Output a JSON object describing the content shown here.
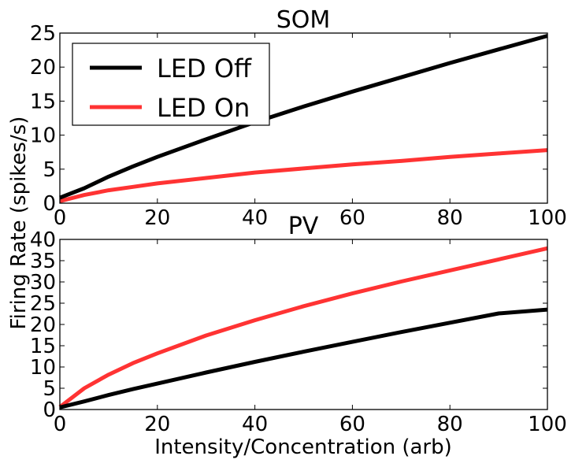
{
  "figure": {
    "shared_ylabel": "Firing Rate (spikes/s)",
    "shared_xlabel": "Intensity/Concentration (arb)"
  },
  "colors": {
    "led_off": "#000000",
    "led_on": "#ff3333",
    "background": "#ffffff"
  },
  "chart_data": [
    {
      "type": "line",
      "title": "SOM",
      "xlabel": "",
      "ylabel": "",
      "xlim": [
        0,
        100
      ],
      "ylim": [
        0,
        25
      ],
      "xticks": [
        "0",
        "20",
        "40",
        "60",
        "80",
        "100"
      ],
      "yticks": [
        "0",
        "5",
        "10",
        "15",
        "20",
        "25"
      ],
      "grid": false,
      "legend_position": "top-left",
      "x": [
        0,
        5,
        10,
        15,
        20,
        30,
        40,
        50,
        60,
        70,
        80,
        90,
        100
      ],
      "series": [
        {
          "name": "LED Off",
          "color": "#000000",
          "values": [
            0.8,
            2.2,
            3.9,
            5.4,
            6.8,
            9.4,
            11.9,
            14.2,
            16.4,
            18.5,
            20.6,
            22.6,
            24.6
          ]
        },
        {
          "name": "LED On",
          "color": "#ff3333",
          "values": [
            0.3,
            1.2,
            1.9,
            2.4,
            2.9,
            3.7,
            4.5,
            5.1,
            5.7,
            6.2,
            6.8,
            7.3,
            7.8
          ]
        }
      ]
    },
    {
      "type": "line",
      "title": "PV",
      "xlabel": "",
      "ylabel": "",
      "xlim": [
        0,
        100
      ],
      "ylim": [
        0,
        40
      ],
      "xticks": [
        "0",
        "20",
        "40",
        "60",
        "80",
        "100"
      ],
      "yticks": [
        "0",
        "5",
        "10",
        "15",
        "20",
        "25",
        "30",
        "35",
        "40"
      ],
      "grid": false,
      "x": [
        0,
        5,
        10,
        15,
        20,
        30,
        40,
        50,
        60,
        70,
        80,
        90,
        100
      ],
      "series": [
        {
          "name": "LED Off",
          "color": "#000000",
          "values": [
            0.5,
            1.9,
            3.4,
            4.8,
            6.1,
            8.7,
            11.2,
            13.6,
            15.9,
            18.2,
            20.4,
            22.6,
            23.5
          ]
        },
        {
          "name": "LED On",
          "color": "#ff3333",
          "values": [
            0.6,
            5.0,
            8.2,
            10.9,
            13.2,
            17.4,
            21.0,
            24.3,
            27.3,
            30.1,
            32.7,
            35.3,
            37.9
          ]
        }
      ]
    }
  ]
}
